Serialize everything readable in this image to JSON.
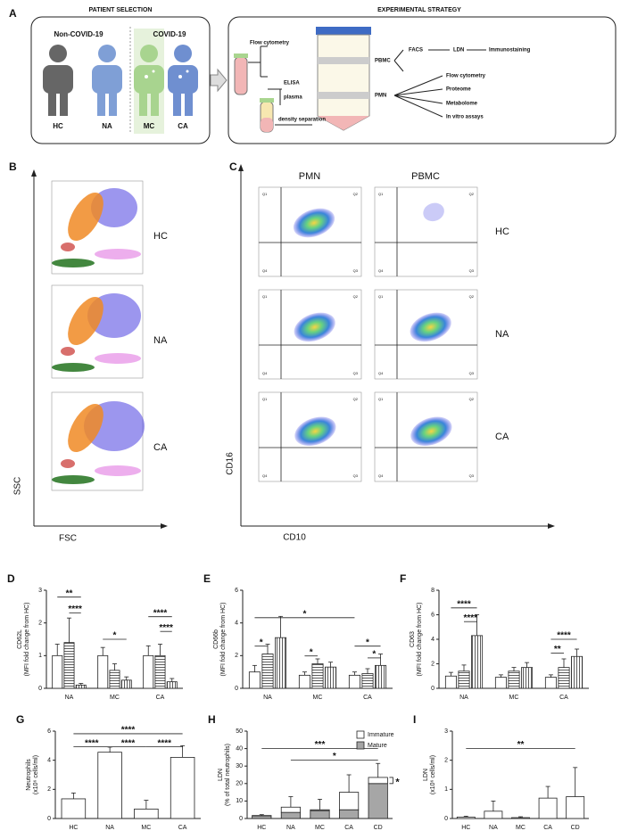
{
  "panel_a": {
    "letter": "A",
    "left_title": "PATIENT SELECTION",
    "right_title": "EXPERIMENTAL STRATEGY",
    "groups": [
      "Non-COVID-19",
      "COVID-19"
    ],
    "patients": [
      "HC",
      "NA",
      "MC",
      "CA"
    ],
    "steps": [
      "Flow cytometry",
      "ELISA",
      "plasma",
      "density separation",
      "PBMC",
      "PMN",
      "FACS",
      "LDN",
      "Immunostaining",
      "Flow cytometry",
      "Proteome",
      "Metabolome",
      "In vitro assays"
    ]
  },
  "panel_b": {
    "letter": "B",
    "xlabel": "FSC",
    "ylabel": "SSC",
    "rows": [
      "HC",
      "NA",
      "CA"
    ]
  },
  "panel_c": {
    "letter": "C",
    "columns": [
      "PMN",
      "PBMC"
    ],
    "rows": [
      "HC",
      "NA",
      "CA"
    ],
    "quadrants": [
      "Q1",
      "Q2",
      "Q4",
      "Q3"
    ],
    "xlabel": "CD10",
    "ylabel": "CD16"
  },
  "chart_data": [
    {
      "letter": "D",
      "type": "bar",
      "categories": [
        "NA",
        "MC",
        "CA"
      ],
      "series": [
        {
          "color": "#ffffff",
          "values": [
            1.0,
            1.0,
            1.0
          ],
          "errors": [
            0.35,
            0.25,
            0.3
          ]
        },
        {
          "color": "#ffffff",
          "hatch": "horizontal",
          "values": [
            1.4,
            0.55,
            1.0
          ],
          "errors": [
            0.75,
            0.2,
            0.35
          ]
        },
        {
          "color": "#ffffff",
          "hatch": "vertical",
          "values": [
            0.1,
            0.25,
            0.2
          ],
          "errors": [
            0.05,
            0.1,
            0.1
          ]
        }
      ],
      "ylim": [
        0,
        3
      ],
      "yticks": [
        0,
        1,
        2,
        3
      ],
      "ylabel": [
        "CD62L",
        "(MFI fold change from HC)"
      ],
      "annotations": [
        "**",
        "****",
        "*",
        "****",
        "****"
      ]
    },
    {
      "letter": "E",
      "type": "bar",
      "categories": [
        "NA",
        "MC",
        "CA"
      ],
      "series": [
        {
          "color": "#ffffff",
          "values": [
            1.0,
            0.8,
            0.8
          ],
          "errors": [
            0.4,
            0.2,
            0.2
          ]
        },
        {
          "color": "#ffffff",
          "hatch": "horizontal",
          "values": [
            2.1,
            1.5,
            0.9
          ],
          "errors": [
            0.6,
            0.3,
            0.3
          ]
        },
        {
          "color": "#ffffff",
          "hatch": "vertical",
          "values": [
            3.1,
            1.3,
            1.4
          ],
          "errors": [
            1.3,
            0.3,
            0.7
          ]
        }
      ],
      "ylim": [
        0,
        6
      ],
      "yticks": [
        0,
        2,
        4,
        6
      ],
      "ylabel": [
        "CD66b",
        "(MFI fold change from HC)"
      ],
      "annotations": [
        "*",
        "*",
        "*",
        "*",
        "*"
      ]
    },
    {
      "letter": "F",
      "type": "bar",
      "categories": [
        "NA",
        "MC",
        "CA"
      ],
      "series": [
        {
          "color": "#ffffff",
          "values": [
            1.0,
            0.9,
            0.9
          ],
          "errors": [
            0.3,
            0.2,
            0.2
          ]
        },
        {
          "color": "#ffffff",
          "hatch": "horizontal",
          "values": [
            1.4,
            1.4,
            1.7
          ],
          "errors": [
            0.5,
            0.3,
            0.7
          ]
        },
        {
          "color": "#ffffff",
          "hatch": "vertical",
          "values": [
            4.3,
            1.7,
            2.6
          ],
          "errors": [
            1.7,
            0.4,
            0.6
          ]
        }
      ],
      "ylim": [
        0,
        8
      ],
      "yticks": [
        0,
        2,
        4,
        6,
        8
      ],
      "ylabel": [
        "CD63",
        "(MFI fold change from HC)"
      ],
      "annotations": [
        "****",
        "****",
        "**",
        "****"
      ]
    },
    {
      "letter": "G",
      "type": "bar",
      "categories": [
        "HC",
        "NA",
        "MC",
        "CA"
      ],
      "series": [
        {
          "color": "#ffffff",
          "values": [
            1.35,
            4.55,
            0.65,
            4.2
          ],
          "errors": [
            0.4,
            0.35,
            0.6,
            0.8
          ]
        }
      ],
      "ylim": [
        0,
        6
      ],
      "yticks": [
        0,
        2,
        4,
        6
      ],
      "ylabel": [
        "Neutrophils",
        "(x10⁶ cells/ml)"
      ],
      "annotations": [
        "****",
        "****",
        "****",
        "****"
      ]
    },
    {
      "letter": "H",
      "type": "stacked_bar",
      "categories": [
        "HC",
        "NA",
        "MC",
        "CA",
        "CD"
      ],
      "series": [
        {
          "name": "Mature",
          "color": "#a6a6a6",
          "values": [
            1.5,
            3.5,
            4.5,
            5,
            20
          ]
        },
        {
          "name": "Immature",
          "color": "#ffffff",
          "values": [
            0.2,
            3,
            0.5,
            10,
            3.5
          ],
          "errors": [
            0.5,
            6,
            6,
            10,
            8
          ]
        }
      ],
      "ylim": [
        0,
        50
      ],
      "yticks": [
        0,
        10,
        20,
        30,
        40,
        50
      ],
      "ylabel": [
        "LDN",
        "(% of total neutrophils)"
      ],
      "annotations": [
        "***",
        "*",
        "*"
      ]
    },
    {
      "letter": "I",
      "type": "bar",
      "categories": [
        "HC",
        "NA",
        "MC",
        "CA",
        "CD"
      ],
      "series": [
        {
          "color": "#ffffff",
          "values": [
            0.05,
            0.25,
            0.03,
            0.7,
            0.75
          ],
          "errors": [
            0.03,
            0.35,
            0.03,
            0.4,
            1.0
          ]
        }
      ],
      "ylim": [
        0,
        3
      ],
      "yticks": [
        0,
        1,
        2,
        3
      ],
      "ylabel": [
        "LDN",
        "(x10⁶ cells/ml)"
      ],
      "annotations": [
        "**"
      ]
    }
  ]
}
